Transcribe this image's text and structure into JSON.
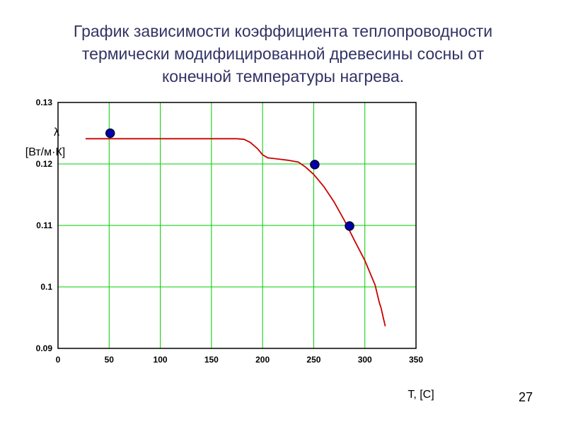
{
  "slide": {
    "title_lines": [
      "График зависимости коэффициента теплопроводности",
      "термически модифицированной древесины сосны от",
      "конечной температуры нагрева."
    ],
    "page_number": "27"
  },
  "chart_data": {
    "type": "line",
    "ylabel_symbol": "λ",
    "ylabel": "[Вт/м·К]",
    "xlabel": "T, [C]",
    "xlim": [
      0,
      350
    ],
    "ylim": [
      0.09,
      0.13
    ],
    "x_ticks": [
      0,
      50,
      100,
      150,
      200,
      250,
      300,
      350
    ],
    "x_tick_labels": [
      "0",
      "50",
      "100",
      "150",
      "200",
      "250",
      "300",
      "350"
    ],
    "y_ticks": [
      0.09,
      0.1,
      0.11,
      0.12,
      0.13
    ],
    "y_tick_labels": [
      "0.09",
      "0.1",
      "0.11",
      "0.12",
      "0.13"
    ],
    "grid": true,
    "series": [
      {
        "kind": "line",
        "color": "#cc0000",
        "points": [
          [
            27,
            0.1241
          ],
          [
            60,
            0.1241
          ],
          [
            100,
            0.1241
          ],
          [
            140,
            0.1241
          ],
          [
            175,
            0.1241
          ],
          [
            182,
            0.124
          ],
          [
            188,
            0.1235
          ],
          [
            195,
            0.1225
          ],
          [
            200,
            0.1215
          ],
          [
            205,
            0.121
          ],
          [
            215,
            0.1208
          ],
          [
            225,
            0.1206
          ],
          [
            235,
            0.1203
          ],
          [
            242,
            0.1195
          ],
          [
            250,
            0.1183
          ],
          [
            260,
            0.1163
          ],
          [
            270,
            0.1138
          ],
          [
            280,
            0.1108
          ],
          [
            290,
            0.1075
          ],
          [
            300,
            0.1043
          ],
          [
            310,
            0.1003
          ],
          [
            314,
            0.0975
          ],
          [
            316,
            0.0965
          ],
          [
            318,
            0.095
          ],
          [
            320,
            0.0936
          ]
        ]
      },
      {
        "kind": "scatter",
        "color": "#0000aa",
        "points": [
          [
            51,
            0.125
          ],
          [
            251,
            0.1199
          ],
          [
            285,
            0.1099
          ]
        ]
      }
    ]
  }
}
